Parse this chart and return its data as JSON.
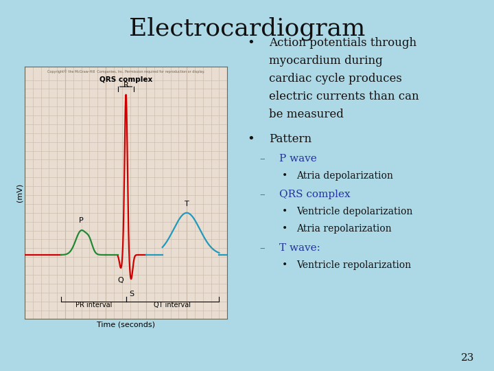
{
  "title": "Electrocardiogram",
  "slide_bg": "#add8e6",
  "ecg_bg": "#e8ddd0",
  "ecg_grid_color": "#c8b8a8",
  "bullet1_lines": [
    "Action potentials through",
    "myocardium during",
    "cardiac cycle produces",
    "electric currents than can",
    "be measured"
  ],
  "bullet2": "Pattern",
  "sub1_label": "P wave",
  "sub1_bullet": "Atria depolarization",
  "sub2_label": "QRS complex",
  "sub2_bullets": [
    "Ventricle depolarization",
    "Atria repolarization"
  ],
  "sub3_label": "T wave:",
  "sub3_bullet": "Ventricle repolarization",
  "page_number": "23",
  "ecg_label_QRS": "QRS complex",
  "ecg_xlabel": "Time (seconds)",
  "ecg_ylabel": "(mV)",
  "ecg_pr_label": "PR interval",
  "ecg_qt_label": "QT interval",
  "ecg_copyright": "Copyright© the McGraw-Hill  Companies, Inc. Permission required for reproduction or display.",
  "title_fontsize": 26,
  "body_fontsize": 12,
  "sub_fontsize": 11,
  "subsub_fontsize": 10,
  "red_color": "#cc0000",
  "green_color": "#228833",
  "cyan_color": "#2299bb",
  "sub_label_color": "#cc2200",
  "sub_item_color": "#223399",
  "body_text_color": "#111111"
}
